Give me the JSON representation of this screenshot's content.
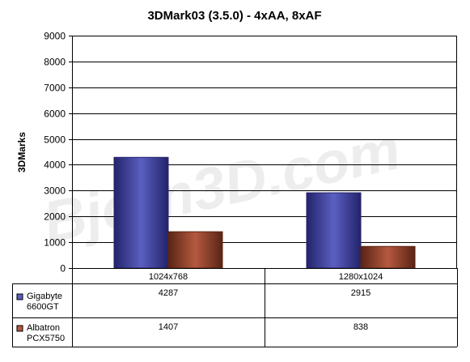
{
  "watermark": "Bjorn3D.com",
  "colors": {
    "series_1": "#5b5fc0",
    "series_1_dark": "#23236b",
    "series_2": "#b5593f",
    "series_2_dark": "#5a2414"
  },
  "chart_data": {
    "type": "bar",
    "title": "3DMark03 (3.5.0) - 4xAA, 8xAF",
    "xlabel": "",
    "ylabel": "3DMarks",
    "ylim": [
      0,
      9000
    ],
    "yticks": [
      0,
      1000,
      2000,
      3000,
      4000,
      5000,
      6000,
      7000,
      8000,
      9000
    ],
    "grid": true,
    "legend": "data-table",
    "categories": [
      "1024x768",
      "1280x1024"
    ],
    "series": [
      {
        "name": "Gigabyte 6600GT",
        "name_lines": [
          "Gigabyte",
          "6600GT"
        ],
        "values": [
          4287,
          2915
        ]
      },
      {
        "name": "Albatron PCX5750",
        "name_lines": [
          "Albatron",
          "PCX5750"
        ],
        "values": [
          1407,
          838
        ]
      }
    ]
  }
}
